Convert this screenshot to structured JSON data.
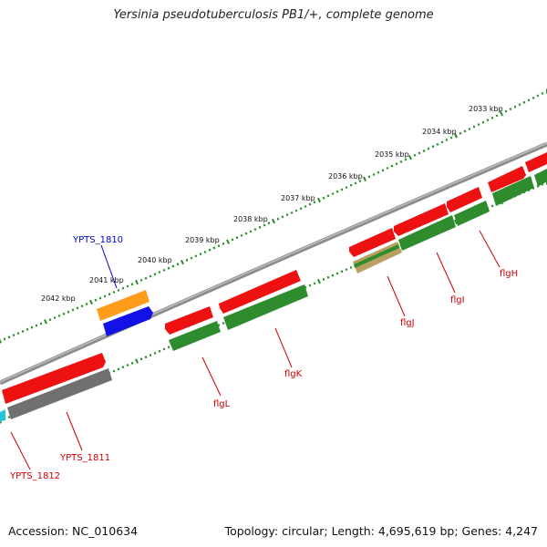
{
  "title": "Yersinia pseudotuberculosis PB1/+, complete genome",
  "footer": {
    "accession": "Accession: NC_010634",
    "summary": "Topology: circular; Length: 4,695,619 bp; Genes: 4,247"
  },
  "colors": {
    "backbone": "#8c8c8c",
    "ticks": "#2a8a2a",
    "forward_gene": "#ee1111",
    "reverse_gene": "#2e8b2e",
    "pseudo_gene": "#707070",
    "label_red": "#cc0000",
    "label_blue": "#0000cc"
  },
  "scale_labels": [
    "2033 kbp",
    "2034 kbp",
    "2035 kbp",
    "2036 kbp",
    "2037 kbp",
    "2038 kbp",
    "2039 kbp",
    "2040 kbp",
    "2041 kbp",
    "2042 kbp"
  ],
  "gene_labels": [
    {
      "name": "YPTS_1810",
      "color": "#0000cc"
    },
    {
      "name": "YPTS_1811",
      "color": "#cc0000"
    },
    {
      "name": "YPTS_1812",
      "color": "#cc0000"
    },
    {
      "name": "flgL",
      "color": "#cc0000"
    },
    {
      "name": "flgK",
      "color": "#cc0000"
    },
    {
      "name": "flgJ",
      "color": "#cc0000"
    },
    {
      "name": "flgI",
      "color": "#cc0000"
    },
    {
      "name": "flgH",
      "color": "#cc0000"
    }
  ]
}
